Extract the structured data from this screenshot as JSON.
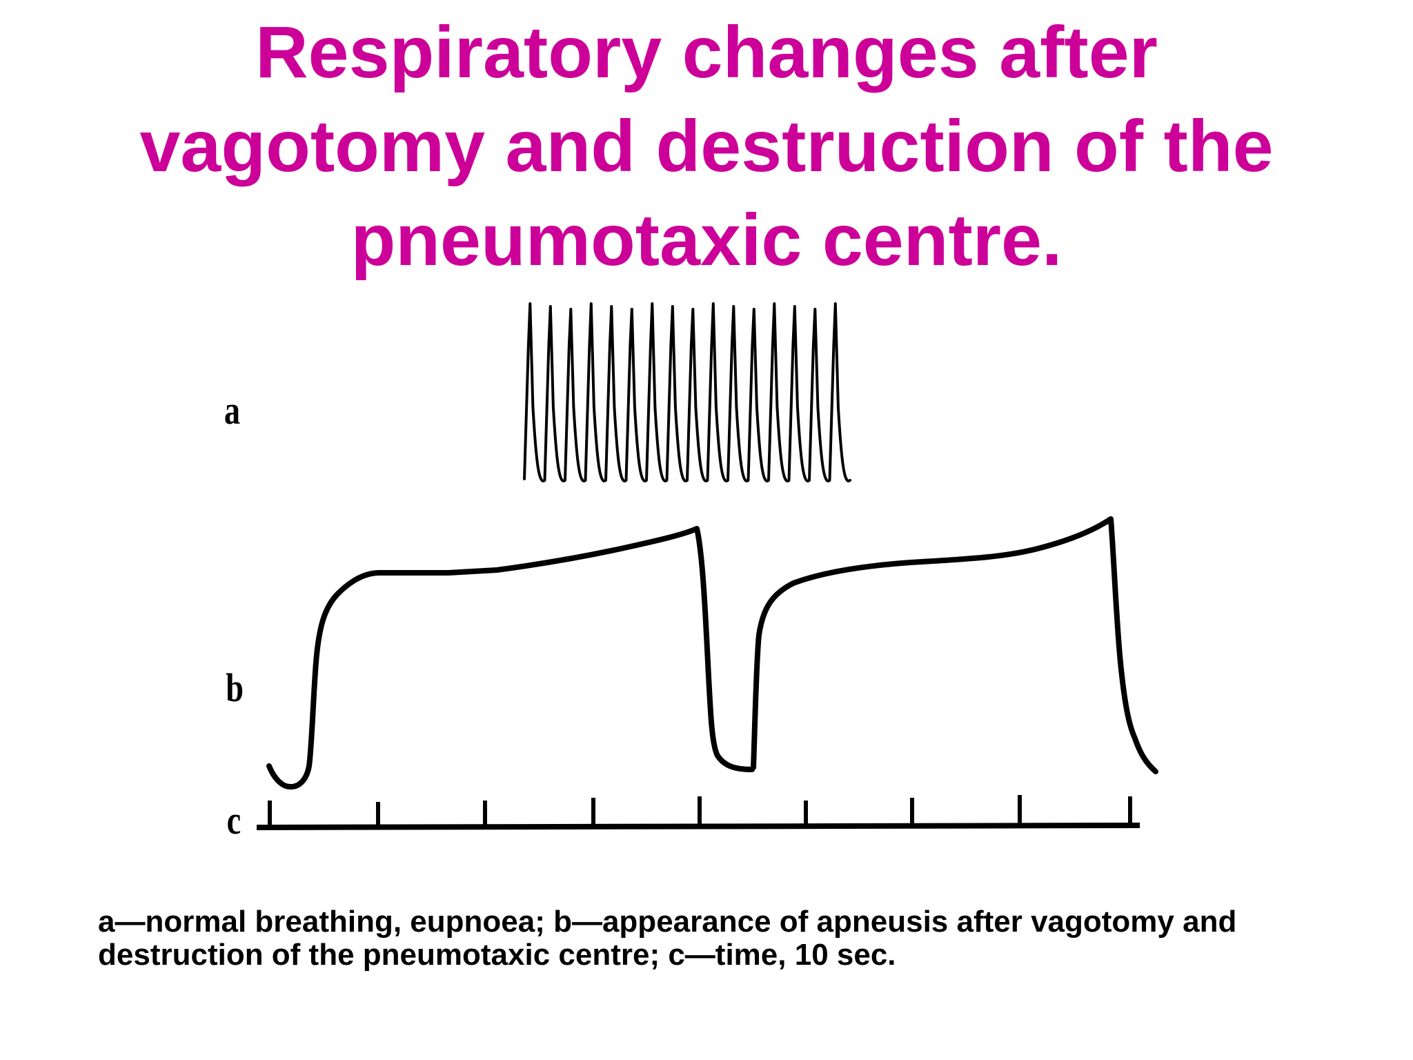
{
  "title": {
    "lines": [
      "Respiratory changes after",
      "vagotomy and destruction of the",
      "pneumotaxic centre."
    ],
    "color": "#cc0099"
  },
  "traces": {
    "a_label": "a",
    "b_label": "b",
    "c_label": "c"
  },
  "caption": {
    "lines": [
      "a—normal breathing, eupnoea; b—appearance of apneusis after vagotomy and",
      "destruction of the pneumotaxic centre; c—time, 10 sec."
    ]
  }
}
